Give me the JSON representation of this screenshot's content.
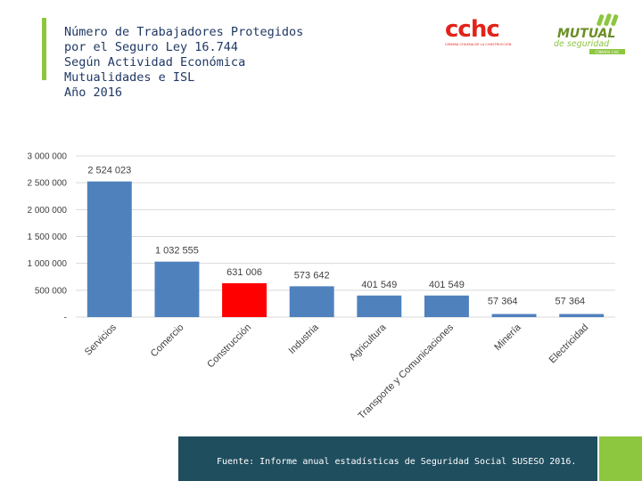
{
  "header": {
    "title_lines": [
      "Número de Trabajadores Protegidos",
      "por el Seguro Ley 16.744",
      "Según Actividad Económica",
      "Mutualidades e ISL",
      "Año 2016"
    ]
  },
  "logos": {
    "cchc": {
      "text": "cchc",
      "subtext": "CÁMARA CHILENA DE LA CONSTRUCCIÓN"
    },
    "mutual": {
      "text": "MUTUAL",
      "subtext": "de seguridad",
      "tagline": "CÁMARA CHC"
    }
  },
  "chart_data": {
    "type": "bar",
    "categories": [
      "Servicios",
      "Comercio",
      "Construcción",
      "Industria",
      "Agricultura",
      "Transporte y Comunicaciones",
      "Minería",
      "Electricidad"
    ],
    "values": [
      2524023,
      1032555,
      631006,
      573642,
      401549,
      401549,
      57364,
      57364
    ],
    "value_labels": [
      "2 524 023",
      "1 032 555",
      "631 006",
      "573 642",
      "401 549",
      "401 549",
      "57 364",
      "57 364"
    ],
    "y_ticks": [
      0,
      500000,
      1000000,
      1500000,
      2000000,
      2500000,
      3000000
    ],
    "y_tick_labels": [
      "-",
      "500 000",
      "1 000 000",
      "1 500 000",
      "2 000 000",
      "2 500 000",
      "3 000 000"
    ],
    "ylim": [
      0,
      3000000
    ],
    "grid": true,
    "colors": {
      "default": "#4f81bd",
      "highlight": "#ff0000"
    },
    "highlight_index": 2
  },
  "footer": {
    "source": "Fuente: Informe anual estadísticas de Seguridad Social SUSESO 2016.",
    "colors": {
      "band": "#1f4e5f",
      "green": "#8dc63f"
    }
  }
}
